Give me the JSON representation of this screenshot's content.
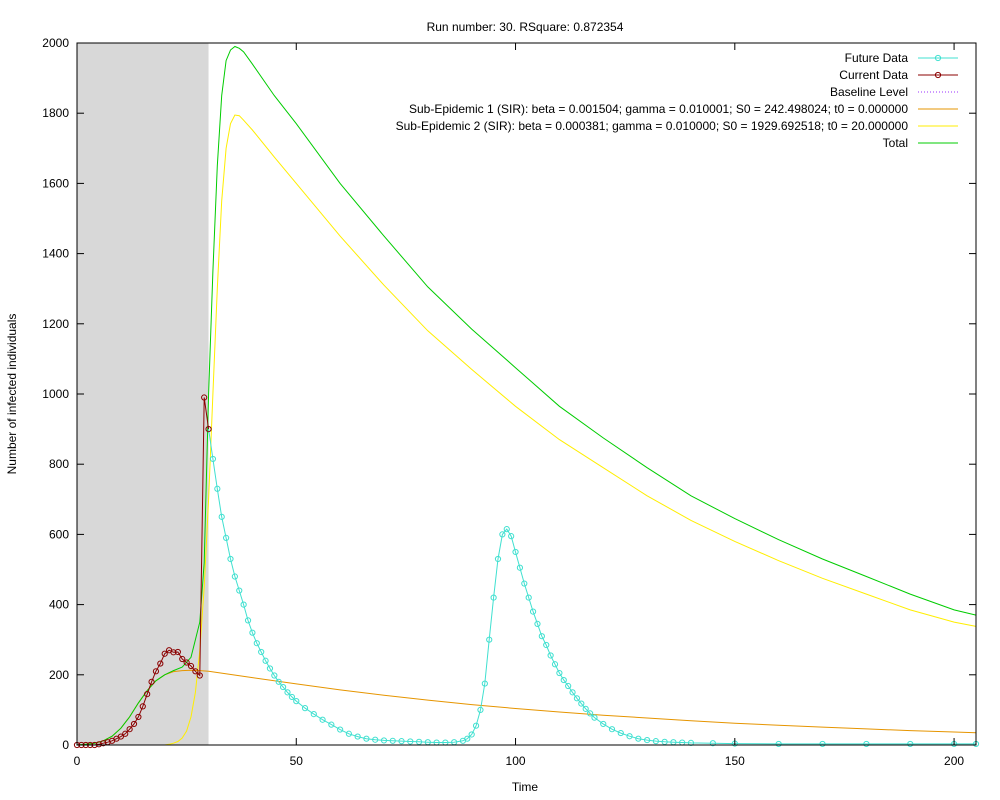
{
  "chart_data": {
    "type": "line",
    "title": "Run number: 30. RSquare: 0.872354",
    "xlabel": "Time",
    "ylabel": "Number of infected individuals",
    "xlim": [
      0,
      205
    ],
    "ylim": [
      0,
      2000
    ],
    "xticks": [
      0,
      50,
      100,
      150,
      200
    ],
    "yticks": [
      0,
      200,
      400,
      600,
      800,
      1000,
      1200,
      1400,
      1600,
      1800,
      2000
    ],
    "shaded_region": {
      "x": [
        0,
        30
      ],
      "color": "#d8d8d8"
    },
    "legend_position": "top-right",
    "grid": false,
    "series": [
      {
        "name": "Future Data",
        "color": "#40e0d0",
        "style": "line-points",
        "x": [
          30,
          31,
          32,
          33,
          34,
          35,
          36,
          37,
          38,
          39,
          40,
          41,
          42,
          43,
          44,
          45,
          46,
          47,
          48,
          49,
          50,
          52,
          54,
          56,
          58,
          60,
          62,
          64,
          66,
          68,
          70,
          72,
          74,
          76,
          78,
          80,
          82,
          84,
          86,
          88,
          89,
          90,
          91,
          92,
          93,
          94,
          95,
          96,
          97,
          98,
          99,
          100,
          101,
          102,
          103,
          104,
          105,
          106,
          107,
          108,
          109,
          110,
          111,
          112,
          113,
          114,
          115,
          116,
          117,
          118,
          120,
          122,
          124,
          126,
          128,
          130,
          132,
          134,
          136,
          138,
          140,
          145,
          150,
          160,
          170,
          180,
          190,
          200,
          205
        ],
        "y": [
          900,
          815,
          730,
          650,
          590,
          530,
          480,
          440,
          400,
          355,
          320,
          290,
          265,
          240,
          218,
          198,
          180,
          165,
          150,
          137,
          125,
          105,
          88,
          72,
          58,
          44,
          32,
          24,
          18,
          15,
          13,
          12,
          11,
          10,
          9,
          8,
          7,
          7,
          8,
          12,
          18,
          30,
          55,
          100,
          175,
          300,
          420,
          530,
          600,
          615,
          595,
          550,
          505,
          460,
          420,
          380,
          345,
          310,
          285,
          255,
          230,
          205,
          185,
          168,
          150,
          133,
          118,
          103,
          90,
          78,
          60,
          45,
          34,
          25,
          18,
          14,
          11,
          9,
          8,
          7,
          6,
          5,
          4,
          3,
          3,
          3,
          3,
          3,
          3
        ]
      },
      {
        "name": "Current Data",
        "color": "#8b0000",
        "style": "line-points",
        "x": [
          0,
          1,
          2,
          3,
          4,
          5,
          6,
          7,
          8,
          9,
          10,
          11,
          12,
          13,
          14,
          15,
          16,
          17,
          18,
          19,
          20,
          21,
          22,
          23,
          24,
          25,
          26,
          27,
          28,
          29,
          30
        ],
        "y": [
          0,
          0,
          0,
          0,
          0,
          2,
          5,
          8,
          12,
          18,
          24,
          32,
          45,
          60,
          80,
          110,
          145,
          180,
          210,
          232,
          260,
          270,
          264,
          265,
          245,
          235,
          225,
          210,
          198,
          990,
          900
        ]
      },
      {
        "name": "Baseline Level",
        "color": "#9b30ff",
        "style": "dotted",
        "x": [
          0,
          205
        ],
        "y": [
          0,
          0
        ]
      },
      {
        "name": "Sub-Epidemic 1 (SIR): beta = 0.001504; gamma = 0.010001; S0 = 242.498024; t0 = 0.000000",
        "color": "#e69500",
        "style": "line",
        "x": [
          0,
          2,
          4,
          6,
          8,
          10,
          12,
          14,
          16,
          18,
          20,
          22,
          24,
          26,
          28,
          30,
          40,
          50,
          60,
          70,
          80,
          90,
          100,
          110,
          120,
          130,
          140,
          150,
          160,
          170,
          180,
          190,
          200,
          205
        ],
        "y": [
          0,
          2,
          5,
          12,
          25,
          48,
          80,
          120,
          155,
          183,
          200,
          209,
          212,
          213,
          212,
          210,
          192,
          174,
          157,
          142,
          128,
          115,
          104,
          94,
          85,
          77,
          69,
          62,
          56,
          51,
          46,
          41,
          37,
          35
        ]
      },
      {
        "name": "Sub-Epidemic 2 (SIR): beta = 0.000381; gamma = 0.010000; S0 = 1929.692518; t0 = 20.000000",
        "color": "#ffee00",
        "style": "line",
        "x": [
          20,
          21,
          22,
          23,
          24,
          25,
          26,
          27,
          28,
          29,
          30,
          31,
          32,
          33,
          34,
          35,
          36,
          37,
          38,
          40,
          45,
          50,
          60,
          70,
          80,
          90,
          100,
          110,
          120,
          130,
          140,
          150,
          160,
          170,
          180,
          190,
          200,
          205
        ],
        "y": [
          0,
          2,
          5,
          10,
          20,
          40,
          80,
          150,
          270,
          450,
          700,
          1000,
          1300,
          1550,
          1700,
          1770,
          1795,
          1793,
          1780,
          1752,
          1675,
          1600,
          1450,
          1310,
          1180,
          1070,
          965,
          870,
          790,
          710,
          640,
          580,
          525,
          475,
          430,
          385,
          350,
          338
        ]
      },
      {
        "name": "Total",
        "color": "#00cc00",
        "style": "line",
        "x": [
          0,
          2,
          4,
          6,
          8,
          10,
          12,
          14,
          16,
          18,
          20,
          22,
          24,
          26,
          28,
          29,
          30,
          31,
          32,
          33,
          34,
          35,
          36,
          37,
          38,
          40,
          45,
          50,
          60,
          70,
          80,
          90,
          100,
          110,
          120,
          130,
          140,
          150,
          160,
          170,
          180,
          190,
          200,
          205
        ],
        "y": [
          0,
          2,
          5,
          12,
          25,
          48,
          80,
          120,
          155,
          183,
          200,
          212,
          222,
          250,
          350,
          520,
          1000,
          1350,
          1650,
          1850,
          1950,
          1980,
          1990,
          1985,
          1975,
          1940,
          1850,
          1770,
          1600,
          1450,
          1305,
          1185,
          1075,
          965,
          875,
          790,
          710,
          645,
          585,
          530,
          480,
          430,
          385,
          370
        ]
      }
    ]
  }
}
